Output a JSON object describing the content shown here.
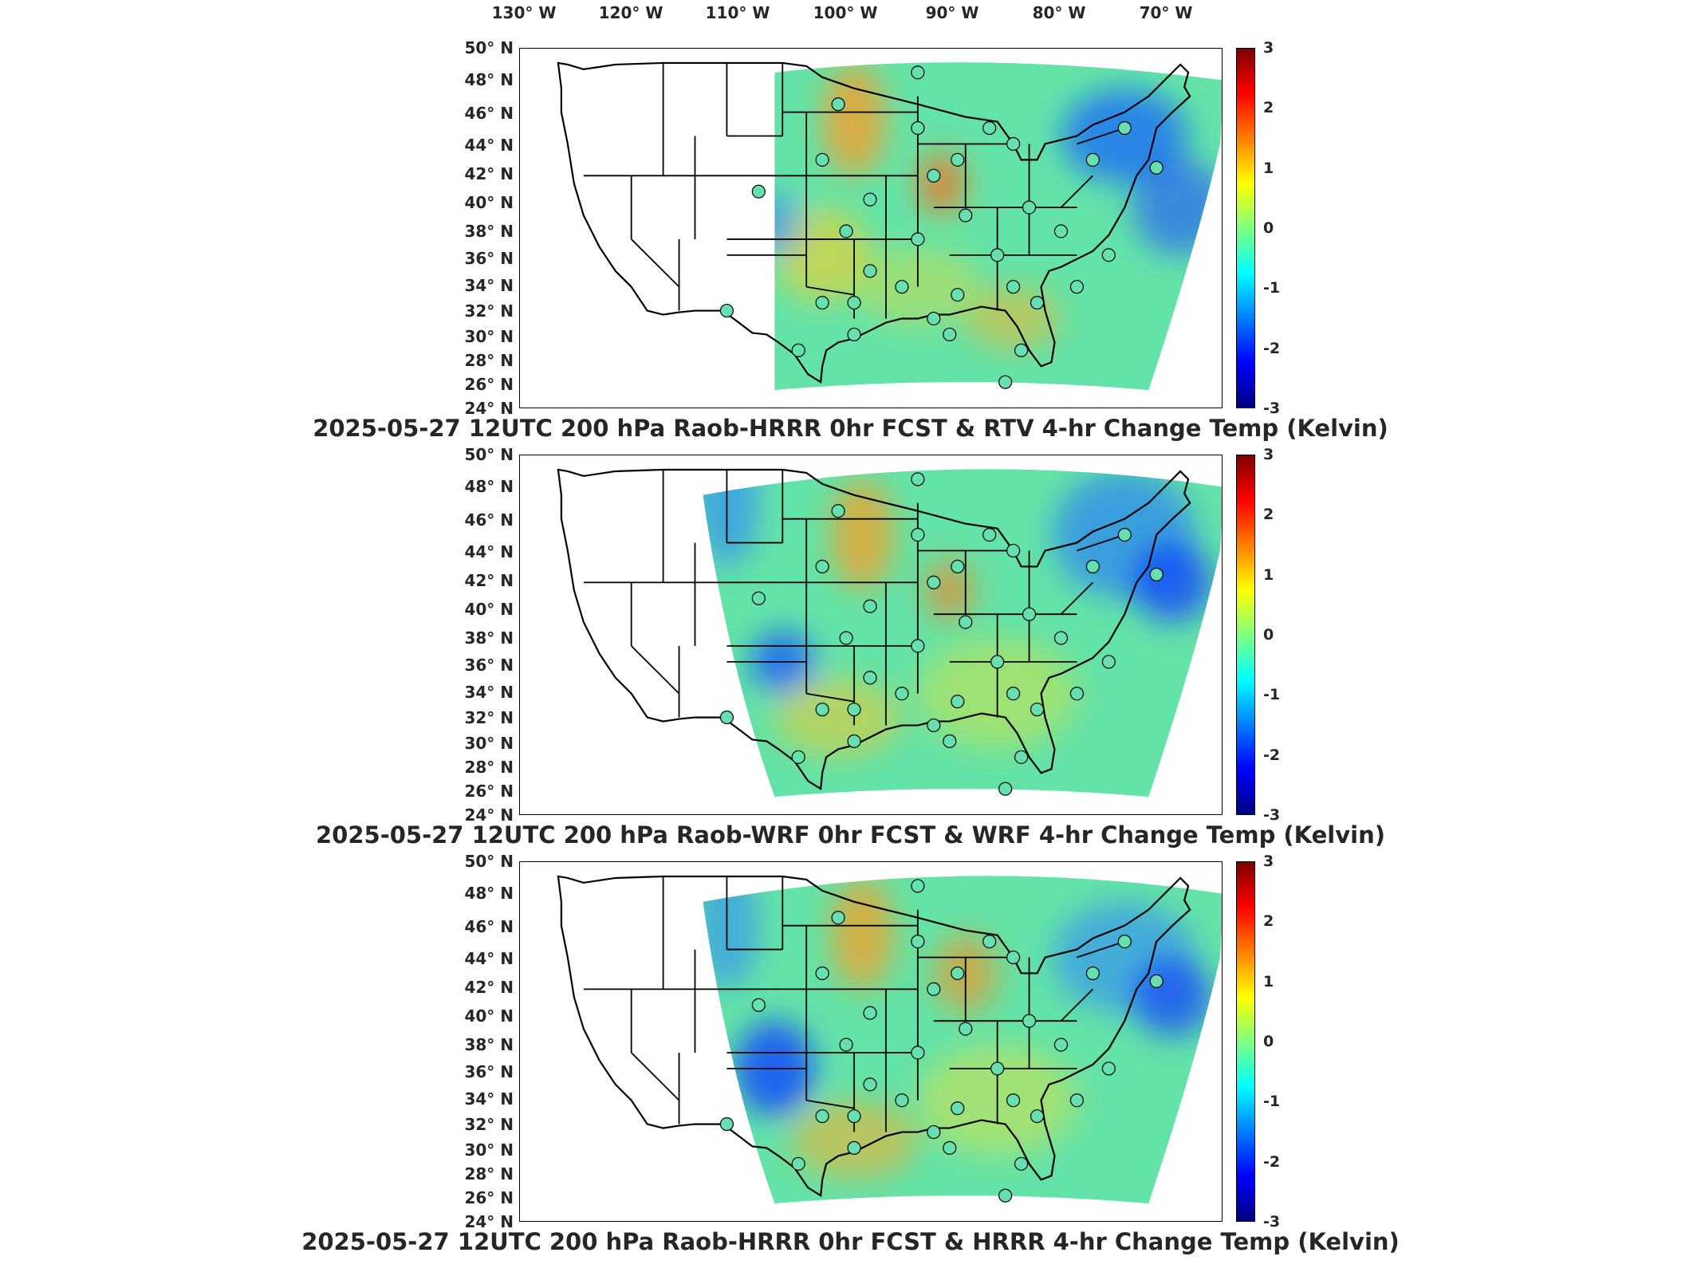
{
  "longitude_labels": [
    "130° W",
    "120° W",
    "110° W",
    "100° W",
    "90° W",
    "80° W",
    "70° W"
  ],
  "latitude_labels": [
    "50° N",
    "48° N",
    "46° N",
    "44° N",
    "42° N",
    "40° N",
    "38° N",
    "36° N",
    "34° N",
    "32° N",
    "30° N",
    "28° N",
    "26° N",
    "24° N"
  ],
  "colorbar": {
    "ticks": [
      "3",
      "2",
      "1",
      "0",
      "-1",
      "-2",
      "-3"
    ],
    "colors": [
      "#00007f",
      "#0000ff",
      "#007fff",
      "#00ffff",
      "#7fff7f",
      "#ffff00",
      "#ff7f00",
      "#ff0000",
      "#7f0000"
    ]
  },
  "panels": [
    {
      "title": "2025-05-27 12UTC 200 hPa Raob-HRRR 0hr FCST & RTV 4-hr Change Temp (Kelvin)"
    },
    {
      "title": "2025-05-27 12UTC 200 hPa Raob-WRF 0hr FCST & WRF 4-hr Change Temp (Kelvin)"
    },
    {
      "title": "2025-05-27 12UTC 200 hPa Raob-HRRR 0hr FCST & HRRR 4-hr Change Temp (Kelvin)"
    }
  ]
}
